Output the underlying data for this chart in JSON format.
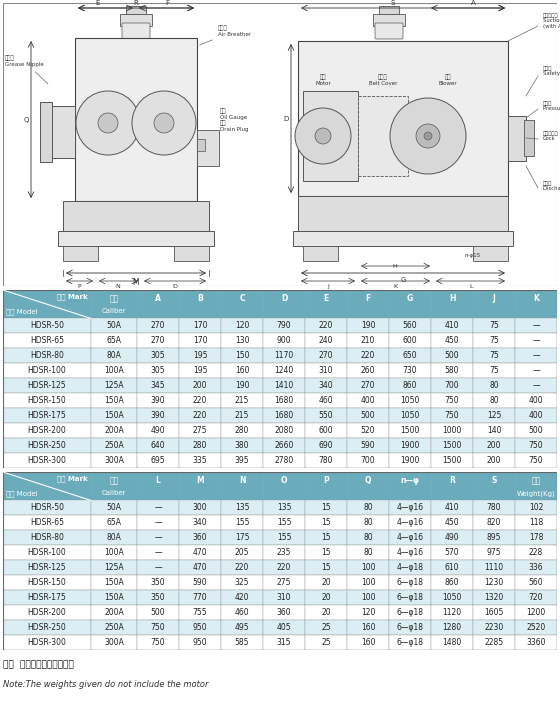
{
  "table1_header_row1": [
    "记号 Mark",
    "口径",
    "A",
    "B",
    "C",
    "D",
    "E",
    "F",
    "G",
    "H",
    "J",
    "K"
  ],
  "table1_header_row2": [
    "型式 Model",
    "Caliber",
    "",
    "",
    "",
    "",
    "",
    "",
    "",
    "",
    "",
    ""
  ],
  "table1_data": [
    [
      "HDSR-50",
      "50A",
      "270",
      "170",
      "120",
      "790",
      "220",
      "190",
      "560",
      "410",
      "75",
      "—"
    ],
    [
      "HDSR-65",
      "65A",
      "270",
      "170",
      "130",
      "900",
      "240",
      "210",
      "600",
      "450",
      "75",
      "—"
    ],
    [
      "HDSR-80",
      "80A",
      "305",
      "195",
      "150",
      "1170",
      "270",
      "220",
      "650",
      "500",
      "75",
      "—"
    ],
    [
      "HDSR-100",
      "100A",
      "305",
      "195",
      "160",
      "1240",
      "310",
      "260",
      "730",
      "580",
      "75",
      "—"
    ],
    [
      "HDSR-125",
      "125A",
      "345",
      "200",
      "190",
      "1410",
      "340",
      "270",
      "860",
      "700",
      "80",
      "—"
    ],
    [
      "HDSR-150",
      "150A",
      "390",
      "220",
      "215",
      "1680",
      "460",
      "400",
      "1050",
      "750",
      "80",
      "400"
    ],
    [
      "HDSR-175",
      "150A",
      "390",
      "220",
      "215",
      "1680",
      "550",
      "500",
      "1050",
      "750",
      "125",
      "400"
    ],
    [
      "HDSR-200",
      "200A",
      "490",
      "275",
      "280",
      "2080",
      "600",
      "520",
      "1500",
      "1000",
      "140",
      "500"
    ],
    [
      "HDSR-250",
      "250A",
      "640",
      "280",
      "380",
      "2660",
      "690",
      "590",
      "1900",
      "1500",
      "200",
      "750"
    ],
    [
      "HDSR-300",
      "300A",
      "695",
      "335",
      "395",
      "2780",
      "780",
      "700",
      "1900",
      "1500",
      "200",
      "750"
    ]
  ],
  "table2_header_row1": [
    "记号 Mark",
    "口径",
    "L",
    "M",
    "N",
    "O",
    "P",
    "Q",
    "n—φ",
    "R",
    "S",
    "重量"
  ],
  "table2_header_row2": [
    "型式 Model",
    "Caliber",
    "",
    "",
    "",
    "",
    "",
    "",
    "",
    "",
    "",
    "Weight(Kg)"
  ],
  "table2_data": [
    [
      "HDSR-50",
      "50A",
      "—",
      "300",
      "135",
      "135",
      "15",
      "80",
      "4—φ16",
      "410",
      "780",
      "102"
    ],
    [
      "HDSR-65",
      "65A",
      "—",
      "340",
      "155",
      "155",
      "15",
      "80",
      "4—φ16",
      "450",
      "820",
      "118"
    ],
    [
      "HDSR-80",
      "80A",
      "—",
      "360",
      "175",
      "155",
      "15",
      "80",
      "4—φ16",
      "490",
      "895",
      "178"
    ],
    [
      "HDSR-100",
      "100A",
      "—",
      "470",
      "205",
      "235",
      "15",
      "80",
      "4—φ16",
      "570",
      "975",
      "228"
    ],
    [
      "HDSR-125",
      "125A",
      "—",
      "470",
      "220",
      "220",
      "15",
      "100",
      "4—φ18",
      "610",
      "1110",
      "336"
    ],
    [
      "HDSR-150",
      "150A",
      "350",
      "590",
      "325",
      "275",
      "20",
      "100",
      "6—φ18",
      "860",
      "1230",
      "560"
    ],
    [
      "HDSR-175",
      "150A",
      "350",
      "770",
      "420",
      "310",
      "20",
      "100",
      "6—φ18",
      "1050",
      "1320",
      "720"
    ],
    [
      "HDSR-200",
      "200A",
      "500",
      "755",
      "460",
      "360",
      "20",
      "120",
      "6—φ18",
      "1120",
      "1605",
      "1200"
    ],
    [
      "HDSR-250",
      "250A",
      "750",
      "950",
      "495",
      "405",
      "25",
      "160",
      "6—φ18",
      "1280",
      "2230",
      "2520"
    ],
    [
      "HDSR-300",
      "300A",
      "750",
      "950",
      "585",
      "315",
      "25",
      "160",
      "6—φ18",
      "1480",
      "2285",
      "3360"
    ]
  ],
  "note_cn": "注：  重量中不包括电机重量",
  "note_en": "Note:The weights given do not include the motor",
  "header_bg": "#6aabbc",
  "alt_row_bg": "#daeef3",
  "white_row_bg": "#ffffff",
  "border_color": "#aaaaaa"
}
